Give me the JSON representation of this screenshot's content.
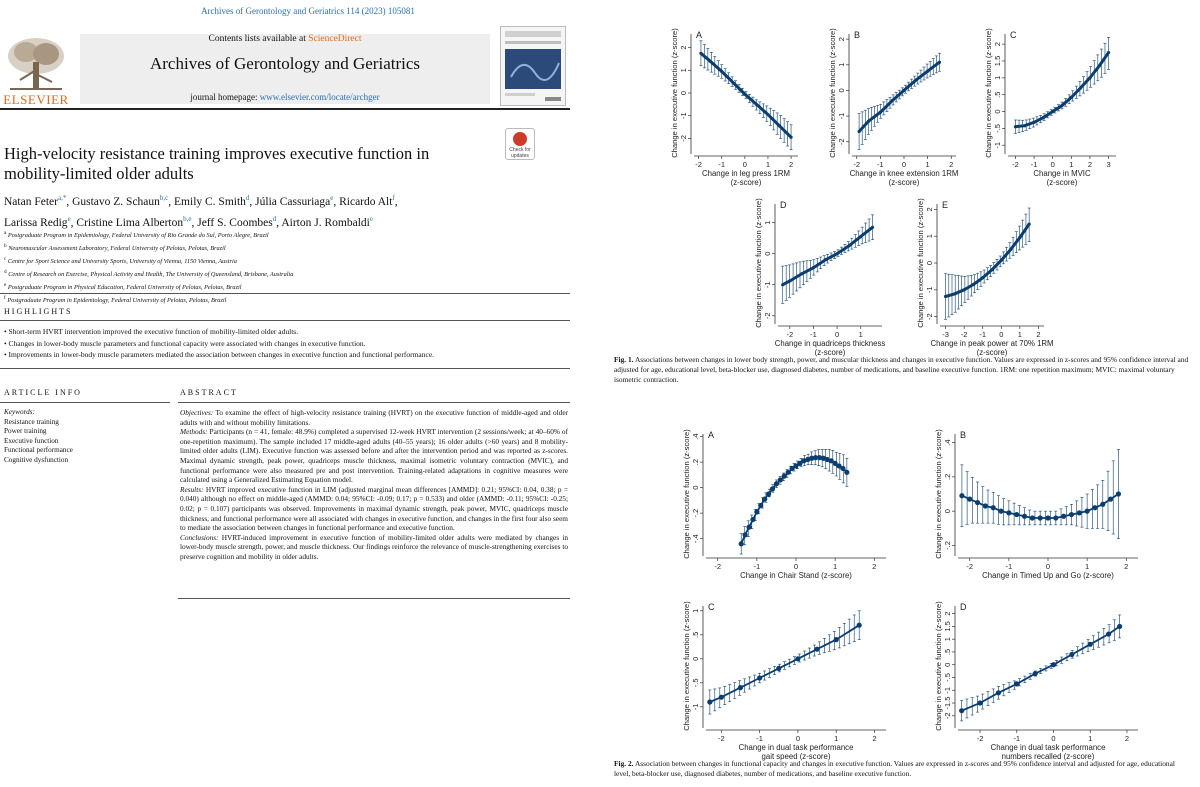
{
  "journal": {
    "reference": "Archives of Gerontology and Geriatrics 114 (2023) 105081",
    "contents_prefix": "Contents lists available at ",
    "contents_link": "ScienceDirect",
    "name": "Archives of Gerontology and Geriatrics",
    "homepage_prefix": "journal homepage: ",
    "homepage_url": "www.elsevier.com/locate/archger",
    "publisher": "ELSEVIER",
    "check_badge": "Check for updates",
    "colors": {
      "link": "#2a6fb0",
      "elsevier": "#e06a1a",
      "curve": "#0b3d6e"
    }
  },
  "paper": {
    "title": "High-velocity resistance training improves executive function in mobility-limited older adults",
    "authors_line1": [
      {
        "name": "Natan Feter",
        "sup": "a,*"
      },
      {
        "name": "Gustavo Z. Schaun",
        "sup": "b,c"
      },
      {
        "name": "Emily C. Smith",
        "sup": "d"
      },
      {
        "name": "Júlia Cassuriaga",
        "sup": "e"
      },
      {
        "name": "Ricardo Alt",
        "sup": "f"
      }
    ],
    "authors_line2": [
      {
        "name": "Larissa Redig",
        "sup": "e"
      },
      {
        "name": "Cristine Lima Alberton",
        "sup": "b,e"
      },
      {
        "name": "Jeff S. Coombes",
        "sup": "d"
      },
      {
        "name": "Airton J. Rombaldi",
        "sup": "e"
      }
    ],
    "affiliations": [
      {
        "sup": "a",
        "text": "Postgraduate Program in Epidemiology, Federal University of Rio Grande do Sul, Porto Alegre, Brazil"
      },
      {
        "sup": "b",
        "text": "Neuromuscular Assessment Laboratory, Federal University of Pelotas, Pelotas, Brazil"
      },
      {
        "sup": "c",
        "text": "Centre for Sport Science and University Sports, University of Vienna, 1150 Vienna, Austria"
      },
      {
        "sup": "d",
        "text": "Centre of Research on Exercise, Physical Activity and Health, The University of Queensland, Brisbane, Australia"
      },
      {
        "sup": "e",
        "text": "Postgraduate Program in Physical Education, Federal University of Pelotas, Pelotas, Brazil"
      },
      {
        "sup": "f",
        "text": "Postgraduate Program in Epidemiology, Federal University of Pelotas, Pelotas, Brazil"
      }
    ],
    "highlights_heading": "HIGHLIGHTS",
    "highlights": [
      "Short-term HVRT intervention improved the executive function of mobility-limited older adults.",
      "Changes in lower-body muscle parameters and functional capacity were associated with changes in executive function.",
      "Improvements in lower-body muscle parameters mediated the association between changes in executive function and functional performance."
    ],
    "article_info_heading": "ARTICLE INFO",
    "keywords_label": "Keywords:",
    "keywords": [
      "Resistance training",
      "Power training",
      "Executive function",
      "Functional performance",
      "Cognitive dysfunction"
    ],
    "abstract_heading": "ABSTRACT",
    "abstract": [
      {
        "label": "Objectives:",
        "text": " To examine the effect of high-velocity resistance training (HVRT) on the executive function of middle-aged and older adults with and without mobility limitations."
      },
      {
        "label": "Methods:",
        "text": " Participants (n = 41, female: 48.9%) completed a supervised 12-week HVRT intervention (2 sessions/week; at 40–60% of one-repetition maximum). The sample included 17 middle-aged adults (40–55 years); 16 older adults (>60 years) and 8 mobility-limited older adults (LIM). Executive function was assessed before and after the intervention period and was reported as z-scores. Maximal dynamic strength, peak power, quadriceps muscle thickness, maximal isometric voluntary contraction (MVIC), and functional performance were also measured pre and post intervention. Training-related adaptations in cognitive measures were calculated using a Generalized Estimating Equation model."
      },
      {
        "label": "Results:",
        "text": " HVRT improved executive function in LIM (adjusted marginal mean differences [AMMD]: 0.21; 95%CI: 0.04, 0.38; p = 0.040) although no effect on middle-aged (AMMD: 0.04; 95%CI: -0.09; 0.17; p = 0.533) and older (AMMD: -0.11; 95%CI: -0.25; 0.02; p = 0.107) participants was observed. Improvements in maximal dynamic strength, peak power, MVIC, quadriceps muscle thickness, and functional performance were all associated with changes in executive function, and changes in the first four also seem to mediate the association between changes in functional performance and executive function."
      },
      {
        "label": "Conclusions:",
        "text": " HVRT-induced improvement in executive function of mobility-limited older adults were mediated by changes in lower-body muscle strength, power, and muscle thickness. Our findings reinforce the relevance of muscle-strengthening exercises to preserve cognition and mobility in older adults."
      }
    ],
    "fig1_caption_label": "Fig. 1.",
    "fig1_caption": "  Associations between changes in lower body strength, power, and muscular thickness and changes in executive function. Values are expressed in z-scores and 95% confidence interval and adjusted for age, educational level, beta-blocker use, diagnosed diabetes, number of medications, and baseline executive function. 1RM: one repetition maximum; MVIC: maximal voluntary isometric contraction.",
    "fig2_caption_label": "Fig. 2.",
    "fig2_caption": "  Association between changes in functional capacity and changes in executive function. Values are expressed in z-scores and 95% confidence interval and adjusted for age, educational level, beta-blocker use, diagnosed diabetes, number of medications, and baseline executive function."
  },
  "chart_data": [
    {
      "panel": "A",
      "figure": "Fig. 1",
      "type": "line",
      "xlabel": "Change in leg press 1RM\n(z-score)",
      "ylabel": "Change in executive function (z-score)",
      "xlim": [
        -2.2,
        2.3
      ],
      "ylim": [
        -2.6,
        2.6
      ],
      "xticks": [
        -2,
        -1,
        0,
        1,
        2
      ],
      "yticks": [
        -2,
        -1,
        0,
        1,
        2
      ],
      "ytick_labels": [
        "-2",
        "-1",
        "0",
        "1",
        "2"
      ],
      "x": [
        -1.9,
        -1.5,
        -1.0,
        -0.5,
        0,
        0.5,
        1.0,
        1.5,
        2.0
      ],
      "y": [
        1.75,
        1.4,
        0.95,
        0.45,
        -0.05,
        -0.5,
        -0.95,
        -1.45,
        -1.95
      ],
      "lower": [
        1.2,
        0.95,
        0.65,
        0.25,
        -0.2,
        -0.75,
        -1.3,
        -1.95,
        -2.5
      ],
      "upper": [
        2.3,
        1.85,
        1.25,
        0.65,
        0.1,
        -0.3,
        -0.6,
        -0.95,
        -1.4
      ]
    },
    {
      "panel": "B",
      "figure": "Fig. 1",
      "type": "line",
      "xlabel": "Change in knee extension 1RM\n(z-score)",
      "ylabel": "Change in executive function (z-score)",
      "xlim": [
        -2.2,
        2.2
      ],
      "ylim": [
        -2.4,
        2.2
      ],
      "xticks": [
        -2,
        -1,
        0,
        1,
        2
      ],
      "yticks": [
        -2,
        -1,
        0,
        1,
        2
      ],
      "ytick_labels": [
        "-2",
        "-1",
        "0",
        "1",
        "2"
      ],
      "x": [
        -1.9,
        -1.5,
        -1.0,
        -0.5,
        0,
        0.5,
        1.0,
        1.5
      ],
      "y": [
        -1.6,
        -1.2,
        -0.85,
        -0.4,
        0.0,
        0.4,
        0.75,
        1.1
      ],
      "lower": [
        -2.3,
        -1.7,
        -1.1,
        -0.6,
        -0.15,
        0.2,
        0.5,
        0.75
      ],
      "upper": [
        -0.9,
        -0.7,
        -0.55,
        -0.2,
        0.15,
        0.6,
        1.05,
        1.45
      ]
    },
    {
      "panel": "C",
      "figure": "Fig. 1",
      "type": "line",
      "xlabel": "Change in MVIC\n(z-score)",
      "ylabel": "Change in executive function (z-score)",
      "xlim": [
        -2.4,
        3.4
      ],
      "ylim": [
        -1.2,
        2.3
      ],
      "xticks": [
        -2,
        -1,
        0,
        1,
        2,
        3
      ],
      "yticks": [
        -1,
        -0.5,
        0,
        0.5,
        1,
        1.5,
        2
      ],
      "ytick_labels": [
        "-1",
        "-.5",
        "0",
        ".5",
        "1",
        "1.5",
        "2"
      ],
      "x": [
        -2.0,
        -1.5,
        -1.0,
        -0.5,
        0,
        0.5,
        1.0,
        1.5,
        2.0,
        2.5,
        3.0
      ],
      "y": [
        -0.45,
        -0.42,
        -0.32,
        -0.18,
        0.0,
        0.18,
        0.42,
        0.7,
        1.0,
        1.35,
        1.75
      ],
      "lower": [
        -0.65,
        -0.58,
        -0.45,
        -0.28,
        -0.08,
        0.08,
        0.28,
        0.48,
        0.7,
        0.95,
        1.25
      ],
      "upper": [
        -0.25,
        -0.26,
        -0.19,
        -0.08,
        0.08,
        0.28,
        0.56,
        0.92,
        1.3,
        1.75,
        2.2
      ]
    },
    {
      "panel": "D",
      "figure": "Fig. 1",
      "type": "line",
      "xlabel": "Change in quadriceps thickness\n(z-score)",
      "ylabel": "Change in executive function (z-score)",
      "xlim": [
        -2.5,
        1.9
      ],
      "ylim": [
        -2.2,
        1.6
      ],
      "xticks": [
        -2,
        -1,
        0,
        1
      ],
      "yticks": [
        -2,
        -1,
        0,
        1
      ],
      "ytick_labels": [
        "-2",
        "-1",
        "0",
        "1"
      ],
      "x": [
        -2.3,
        -2.0,
        -1.5,
        -1.0,
        -0.5,
        0,
        0.5,
        1.0,
        1.5
      ],
      "y": [
        -1.0,
        -0.88,
        -0.65,
        -0.45,
        -0.2,
        0.0,
        0.25,
        0.55,
        0.85
      ],
      "lower": [
        -1.6,
        -1.4,
        -1.05,
        -0.7,
        -0.35,
        -0.1,
        0.1,
        0.3,
        0.45
      ],
      "upper": [
        -0.4,
        -0.36,
        -0.25,
        -0.2,
        -0.05,
        0.1,
        0.4,
        0.8,
        1.25
      ]
    },
    {
      "panel": "E",
      "figure": "Fig. 1",
      "type": "line",
      "xlabel": "Change in peak power at 70% 1RM\n(z-score)",
      "ylabel": "Change in executive function (z-score)",
      "xlim": [
        -3.3,
        2.3
      ],
      "ylim": [
        -2.2,
        2.2
      ],
      "xticks": [
        -3,
        -2,
        -1,
        0,
        1,
        2
      ],
      "yticks": [
        -2,
        -1,
        0,
        1,
        2
      ],
      "ytick_labels": [
        "-2",
        "-1",
        "0",
        "1",
        "2"
      ],
      "x": [
        -3.0,
        -2.5,
        -2.0,
        -1.5,
        -1.0,
        -0.5,
        0,
        0.5,
        1.0,
        1.5
      ],
      "y": [
        -1.25,
        -1.15,
        -1.0,
        -0.8,
        -0.55,
        -0.25,
        0.1,
        0.5,
        0.95,
        1.45
      ],
      "lower": [
        -2.1,
        -1.85,
        -1.5,
        -1.15,
        -0.8,
        -0.45,
        -0.1,
        0.2,
        0.5,
        0.8
      ],
      "upper": [
        -0.4,
        -0.45,
        -0.5,
        -0.45,
        -0.3,
        -0.05,
        0.3,
        0.8,
        1.4,
        2.05
      ]
    },
    {
      "panel": "A",
      "figure": "Fig. 2",
      "type": "line",
      "xlabel": "Change in Chair Stand (z-score)",
      "ylabel": "Change in executive function (z-score)",
      "xlim": [
        -2.3,
        2.3
      ],
      "ylim": [
        -0.52,
        0.42
      ],
      "xticks": [
        -2,
        -1,
        0,
        1,
        2
      ],
      "yticks": [
        -0.4,
        -0.2,
        0,
        0.2,
        0.4
      ],
      "ytick_labels": [
        "-.4",
        "-.2",
        "0",
        ".2",
        ".4"
      ],
      "x": [
        -1.4,
        -1.3,
        -1.2,
        -1.1,
        -1.0,
        -0.9,
        -0.8,
        -0.7,
        -0.6,
        -0.5,
        -0.4,
        -0.3,
        -0.2,
        -0.1,
        0,
        0.1,
        0.2,
        0.3,
        0.4,
        0.5,
        0.6,
        0.7,
        0.8,
        0.9,
        1.0,
        1.1,
        1.2,
        1.3
      ],
      "y": [
        -0.44,
        -0.37,
        -0.31,
        -0.25,
        -0.19,
        -0.14,
        -0.09,
        -0.05,
        -0.01,
        0.03,
        0.06,
        0.09,
        0.12,
        0.15,
        0.17,
        0.19,
        0.21,
        0.22,
        0.23,
        0.235,
        0.235,
        0.23,
        0.22,
        0.21,
        0.19,
        0.17,
        0.15,
        0.12
      ],
      "lower": [
        -0.52,
        -0.44,
        -0.37,
        -0.3,
        -0.23,
        -0.18,
        -0.13,
        -0.08,
        -0.04,
        -0.0,
        0.03,
        0.06,
        0.09,
        0.12,
        0.14,
        0.16,
        0.17,
        0.18,
        0.18,
        0.18,
        0.17,
        0.16,
        0.14,
        0.12,
        0.1,
        0.07,
        0.04,
        0.01
      ],
      "upper": [
        -0.36,
        -0.3,
        -0.25,
        -0.2,
        -0.15,
        -0.1,
        -0.05,
        -0.02,
        0.02,
        0.06,
        0.09,
        0.12,
        0.15,
        0.18,
        0.2,
        0.22,
        0.25,
        0.26,
        0.28,
        0.29,
        0.3,
        0.3,
        0.3,
        0.3,
        0.28,
        0.27,
        0.26,
        0.23
      ]
    },
    {
      "panel": "B",
      "figure": "Fig. 2",
      "type": "line",
      "xlabel": "Change in Timed Up and Go (z-score)",
      "ylabel": "Change in executive function (z-score)",
      "xlim": [
        -2.3,
        2.3
      ],
      "ylim": [
        -0.25,
        0.45
      ],
      "xticks": [
        -2,
        -1,
        0,
        1,
        2
      ],
      "yticks": [
        -0.2,
        0,
        0.2,
        0.4
      ],
      "ytick_labels": [
        "-.2",
        "0",
        ".2",
        ".4"
      ],
      "x": [
        -2.2,
        -2.0,
        -1.8,
        -1.6,
        -1.4,
        -1.2,
        -1.0,
        -0.8,
        -0.6,
        -0.4,
        -0.2,
        0,
        0.2,
        0.4,
        0.6,
        0.8,
        1.0,
        1.2,
        1.4,
        1.6,
        1.8
      ],
      "y": [
        0.09,
        0.07,
        0.05,
        0.03,
        0.02,
        0.0,
        -0.01,
        -0.02,
        -0.03,
        -0.04,
        -0.04,
        -0.04,
        -0.04,
        -0.03,
        -0.02,
        -0.01,
        0.0,
        0.02,
        0.04,
        0.07,
        0.1
      ],
      "lower": [
        -0.09,
        -0.07,
        -0.07,
        -0.07,
        -0.07,
        -0.08,
        -0.08,
        -0.08,
        -0.08,
        -0.08,
        -0.08,
        -0.08,
        -0.08,
        -0.08,
        -0.08,
        -0.09,
        -0.1,
        -0.1,
        -0.1,
        -0.12,
        -0.16
      ],
      "upper": [
        0.27,
        0.21,
        0.17,
        0.13,
        0.11,
        0.08,
        0.06,
        0.04,
        0.02,
        0.0,
        0.0,
        0.0,
        0.0,
        0.02,
        0.04,
        0.07,
        0.1,
        0.14,
        0.18,
        0.26,
        0.36
      ]
    },
    {
      "panel": "C",
      "figure": "Fig. 2",
      "type": "line",
      "xlabel": "Change in dual task performance\ngait speed (z-score)",
      "ylabel": "Change in executive function (z-score)",
      "xlim": [
        -2.4,
        2.3
      ],
      "ylim": [
        -1.4,
        1.1
      ],
      "xticks": [
        -2,
        -1,
        0,
        1,
        2
      ],
      "yticks": [
        -1,
        -0.5,
        0,
        0.5,
        1
      ],
      "ytick_labels": [
        "-1",
        "-.5",
        "0",
        ".5",
        "1"
      ],
      "x": [
        -2.3,
        -2.0,
        -1.5,
        -1.0,
        -0.5,
        0,
        0.5,
        1.0,
        1.6
      ],
      "y": [
        -0.9,
        -0.8,
        -0.6,
        -0.4,
        -0.2,
        0.0,
        0.2,
        0.4,
        0.7
      ],
      "lower": [
        -1.15,
        -1.0,
        -0.75,
        -0.5,
        -0.28,
        -0.08,
        0.08,
        0.2,
        0.4
      ],
      "upper": [
        -0.65,
        -0.6,
        -0.45,
        -0.3,
        -0.12,
        0.08,
        0.32,
        0.6,
        1.0
      ]
    },
    {
      "panel": "D",
      "figure": "Fig. 2",
      "type": "line",
      "xlabel": "Change in dual task performance\nnumbers recalled (z-score)",
      "ylabel": "Change in executive function (z-score)",
      "xlim": [
        -2.6,
        2.3
      ],
      "ylim": [
        -2.4,
        2.3
      ],
      "xticks": [
        -2,
        -1,
        0,
        1,
        2
      ],
      "yticks": [
        -2,
        -1.5,
        -1,
        -0.5,
        0,
        0.5,
        1,
        1.5,
        2
      ],
      "ytick_labels": [
        "-2",
        "-1.5",
        "-1",
        "-.5",
        "0",
        ".5",
        "1",
        "1.5",
        "2"
      ],
      "x": [
        -2.5,
        -2.0,
        -1.5,
        -1.0,
        -0.5,
        0,
        0.5,
        1.0,
        1.5,
        1.8
      ],
      "y": [
        -1.8,
        -1.5,
        -1.1,
        -0.75,
        -0.35,
        0.0,
        0.4,
        0.8,
        1.2,
        1.5
      ],
      "lower": [
        -2.2,
        -1.8,
        -1.35,
        -0.9,
        -0.45,
        -0.1,
        0.25,
        0.55,
        0.85,
        1.05
      ],
      "upper": [
        -1.4,
        -1.2,
        -0.85,
        -0.6,
        -0.25,
        0.1,
        0.55,
        1.05,
        1.55,
        1.95
      ]
    }
  ]
}
